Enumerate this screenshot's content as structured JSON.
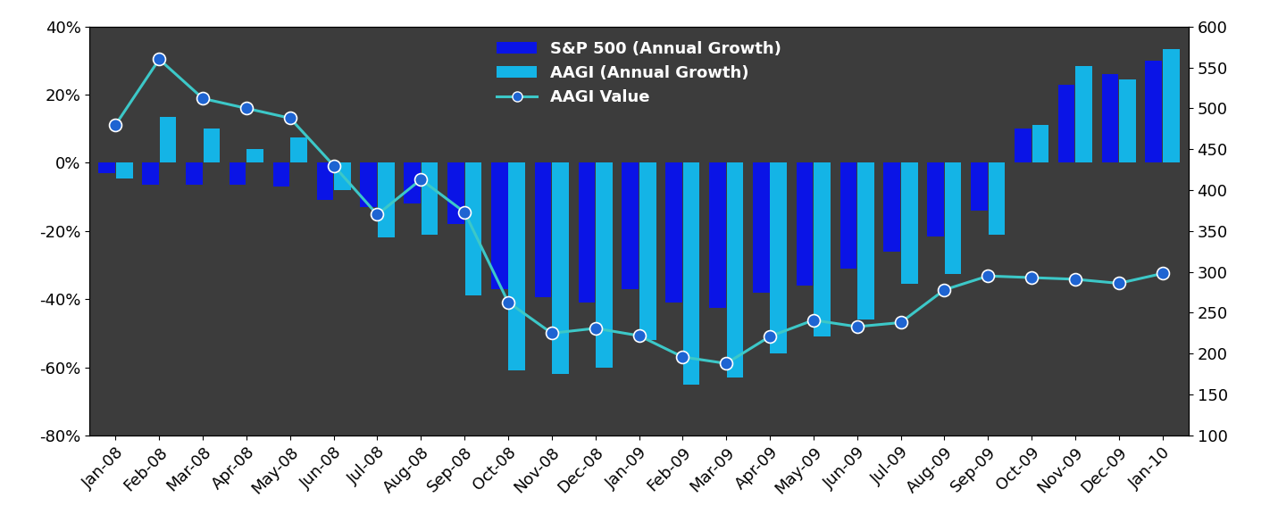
{
  "chart_data": {
    "type": "bar",
    "categories": [
      "Jan-08",
      "Feb-08",
      "Mar-08",
      "Apr-08",
      "May-08",
      "Jun-08",
      "Jul-08",
      "Aug-08",
      "Sep-08",
      "Oct-08",
      "Nov-08",
      "Dec-08",
      "Jan-09",
      "Feb-09",
      "Mar-09",
      "Apr-09",
      "May-09",
      "Jun-09",
      "Jul-09",
      "Aug-09",
      "Sep-09",
      "Oct-09",
      "Nov-09",
      "Dec-09",
      "Jan-10"
    ],
    "series": [
      {
        "name": "S&P 500 (Annual Growth)",
        "type": "bar",
        "color": "#0a14e6",
        "values": [
          -3,
          -6.5,
          -6.5,
          -6.5,
          -7,
          -11,
          -13,
          -12,
          -18,
          -37,
          -39.5,
          -41,
          -37,
          -41,
          -42.5,
          -38,
          -36,
          -31,
          -26,
          -21.5,
          -14,
          10,
          23,
          26,
          30
        ]
      },
      {
        "name": "AAGI (Annual Growth)",
        "type": "bar",
        "color": "#14b4e6",
        "values": [
          -4.5,
          13.5,
          10,
          4,
          7.5,
          -8,
          -22,
          -21,
          -39,
          -61,
          -62,
          -60,
          -52,
          -65,
          -63,
          -56,
          -51,
          -46,
          -35.5,
          -32.5,
          -21,
          11,
          28.5,
          24.5,
          33.5
        ]
      },
      {
        "name": "AAGI Value",
        "type": "line",
        "axis": "y2",
        "color": "#3cc8c8",
        "marker": "o",
        "line_style": "solid",
        "values": [
          480,
          560,
          512,
          500,
          488,
          430,
          370,
          413,
          373,
          263,
          225,
          231,
          222,
          196,
          188,
          221,
          241,
          233,
          238,
          278,
          295,
          293,
          291,
          286,
          298
        ]
      }
    ],
    "ylim": [
      -80,
      40
    ],
    "yticks": [
      {
        "value": -80,
        "label": "-80%"
      },
      {
        "value": -60,
        "label": "-60%"
      },
      {
        "value": -40,
        "label": "-40%"
      },
      {
        "value": -20,
        "label": "-20%"
      },
      {
        "value": 0,
        "label": "0%"
      },
      {
        "value": 20,
        "label": "20%"
      },
      {
        "value": 40,
        "label": "40%"
      }
    ],
    "y2lim": [
      100,
      600
    ],
    "y2ticks": [
      100,
      150,
      200,
      250,
      300,
      350,
      400,
      450,
      500,
      550,
      600
    ],
    "legend": "upper center",
    "grid": false
  }
}
